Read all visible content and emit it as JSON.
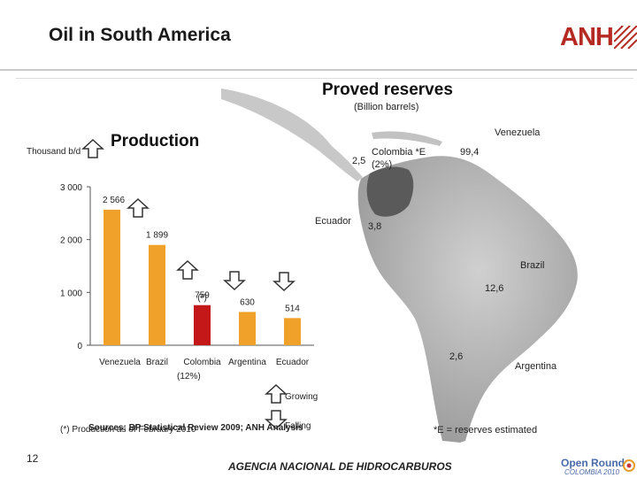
{
  "header": {
    "title": "Oil in South America",
    "logo": "ANH"
  },
  "production_chart": {
    "title": "Production",
    "unit_label": "Thousand b/d",
    "note": "(*) Production as of February 2010",
    "footnote_share": "(12%)",
    "legend": {
      "growing": "Growing",
      "falling": "Falling"
    },
    "chart_data": {
      "type": "bar",
      "title": "Production",
      "ylabel": "Thousand b/d",
      "categories": [
        "Venezuela",
        "Brazil",
        "Colombia",
        "Argentina",
        "Ecuador"
      ],
      "values": [
        2566,
        1899,
        759,
        630,
        514
      ],
      "value_labels": [
        "2 566",
        "1 899",
        "759",
        "630",
        "514"
      ],
      "secondary_labels": [
        "",
        "",
        "(*)",
        "",
        ""
      ],
      "trend": [
        "growing",
        "growing",
        "growing",
        "falling",
        "falling"
      ],
      "colors": [
        "#f0a12a",
        "#f0a12a",
        "#c41818",
        "#f0a12a",
        "#f0a12a"
      ],
      "ylim": [
        0,
        3000
      ],
      "yticks": [
        0,
        1000,
        2000,
        3000
      ],
      "ytick_labels": [
        "0",
        "1 000",
        "2 000",
        "3 000"
      ]
    }
  },
  "reserves": {
    "title": "Proved reserves",
    "subtitle": "(Billion barrels)",
    "venezuela": {
      "name": "Venezuela",
      "value": "99,4"
    },
    "colombia": {
      "name": "Colombia *E",
      "value": "2,5",
      "share": "(2%)"
    },
    "ecuador": {
      "name": "Ecuador",
      "value": "3,8"
    },
    "brazil": {
      "name": "Brazil",
      "value": "12,6"
    },
    "argentina": {
      "name": "Argentina",
      "value": "2,6"
    },
    "note": "*E = reserves estimated"
  },
  "footer": {
    "sources": "Sources: BP Statistical Review 2009; ANH Analysis",
    "brand": "AGENCIA NACIONAL DE HIDROCARBUROS",
    "page": "12",
    "open_round": "Open Round",
    "open_round_sub": "COLOMBIA 2010"
  }
}
